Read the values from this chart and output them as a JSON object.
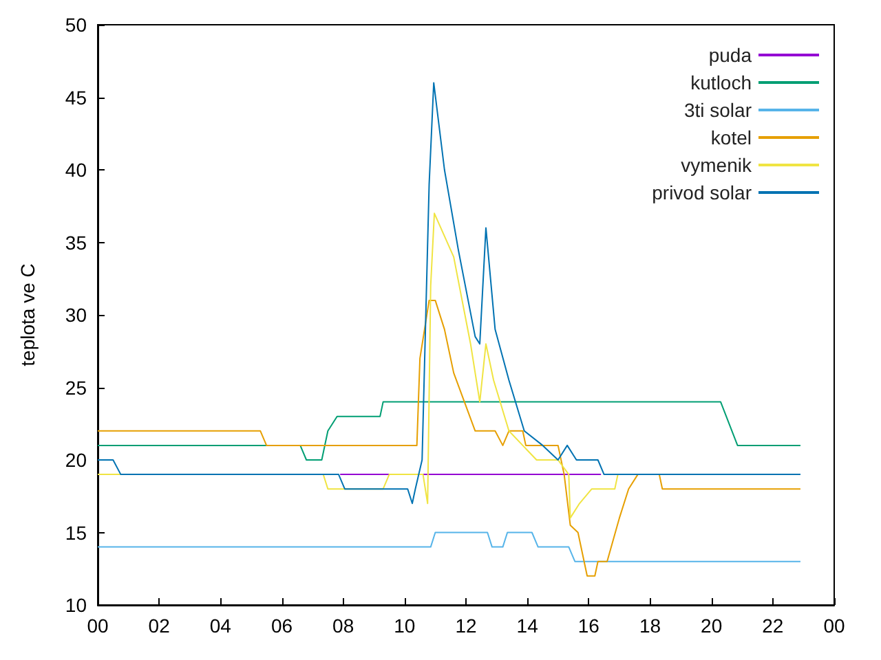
{
  "chart_data": {
    "type": "line",
    "ylabel": "teplota ve C",
    "xlim": [
      0,
      24
    ],
    "ylim": [
      10,
      50
    ],
    "xticks": [
      {
        "value": 0,
        "label": "00"
      },
      {
        "value": 2,
        "label": "02"
      },
      {
        "value": 4,
        "label": "04"
      },
      {
        "value": 6,
        "label": "06"
      },
      {
        "value": 8,
        "label": "08"
      },
      {
        "value": 10,
        "label": "10"
      },
      {
        "value": 12,
        "label": "12"
      },
      {
        "value": 14,
        "label": "14"
      },
      {
        "value": 16,
        "label": "16"
      },
      {
        "value": 18,
        "label": "18"
      },
      {
        "value": 20,
        "label": "20"
      },
      {
        "value": 22,
        "label": "22"
      },
      {
        "value": 24,
        "label": "00"
      }
    ],
    "yticks": [
      10,
      15,
      20,
      25,
      30,
      35,
      40,
      45,
      50
    ],
    "grid": false,
    "legend": "top right",
    "marker": "none",
    "line_style": "solid",
    "series": [
      {
        "name": "puda",
        "color": "#9400d3",
        "x": [
          7.9,
          16.4
        ],
        "values": [
          19,
          19
        ]
      },
      {
        "name": "kutloch",
        "color": "#009e73",
        "x": [
          0,
          6.6,
          6.8,
          7.3,
          7.5,
          7.8,
          9.2,
          9.3,
          20.3,
          20.85,
          22.9
        ],
        "values": [
          21,
          21,
          20,
          20,
          22,
          23,
          23,
          24,
          24,
          21,
          21
        ]
      },
      {
        "name": "3ti solar",
        "color": "#56b4e9",
        "x": [
          0,
          10.85,
          11.0,
          12.7,
          12.85,
          13.2,
          13.35,
          14.15,
          14.35,
          15.35,
          15.55,
          22.9
        ],
        "values": [
          14,
          14,
          15,
          15,
          14,
          14,
          15,
          15,
          14,
          14,
          13,
          13
        ]
      },
      {
        "name": "kotel",
        "color": "#e69f00",
        "x": [
          0,
          5.3,
          5.5,
          10.4,
          10.5,
          10.8,
          11.0,
          11.3,
          11.6,
          11.95,
          12.3,
          12.95,
          13.2,
          13.4,
          13.85,
          13.95,
          15.0,
          15.2,
          15.4,
          15.65,
          15.9,
          15.95,
          16.2,
          16.3,
          16.6,
          17.0,
          17.3,
          17.6,
          18.3,
          18.4,
          22.9
        ],
        "values": [
          22,
          22,
          21,
          21,
          27,
          31,
          31,
          29,
          26,
          24,
          22,
          22,
          21,
          22,
          22,
          21,
          21,
          19,
          15.5,
          15,
          12.5,
          12,
          12,
          13,
          13,
          16,
          18,
          19,
          19,
          18,
          18
        ]
      },
      {
        "name": "vymenik",
        "color": "#f0e442",
        "x": [
          0,
          7.35,
          7.5,
          9.3,
          9.5,
          10.6,
          10.75,
          10.85,
          10.97,
          11.6,
          12.15,
          12.45,
          12.65,
          12.9,
          13.4,
          13.85,
          14.3,
          15.0,
          15.35,
          15.4,
          15.7,
          16.1,
          16.85,
          16.95
        ],
        "values": [
          19,
          19,
          18,
          18,
          19,
          19,
          17,
          32,
          37,
          34,
          28,
          24,
          28,
          25.5,
          22,
          21,
          20,
          20,
          19,
          16,
          17,
          18,
          18,
          19
        ]
      },
      {
        "name": "privod solar",
        "color": "#0072b2",
        "x": [
          0,
          0.5,
          0.75,
          7.85,
          8.05,
          10.1,
          10.25,
          10.35,
          10.57,
          10.8,
          10.95,
          11.3,
          11.75,
          12.3,
          12.45,
          12.65,
          12.95,
          13.4,
          13.9,
          14.5,
          15.0,
          15.3,
          15.6,
          16.3,
          16.5,
          22.9
        ],
        "values": [
          20,
          20,
          19,
          19,
          18,
          18,
          17,
          18,
          20,
          39,
          46,
          40,
          34.5,
          28.5,
          28,
          36,
          29,
          25.5,
          22,
          21,
          20,
          21,
          20,
          20,
          19,
          19
        ]
      }
    ]
  }
}
